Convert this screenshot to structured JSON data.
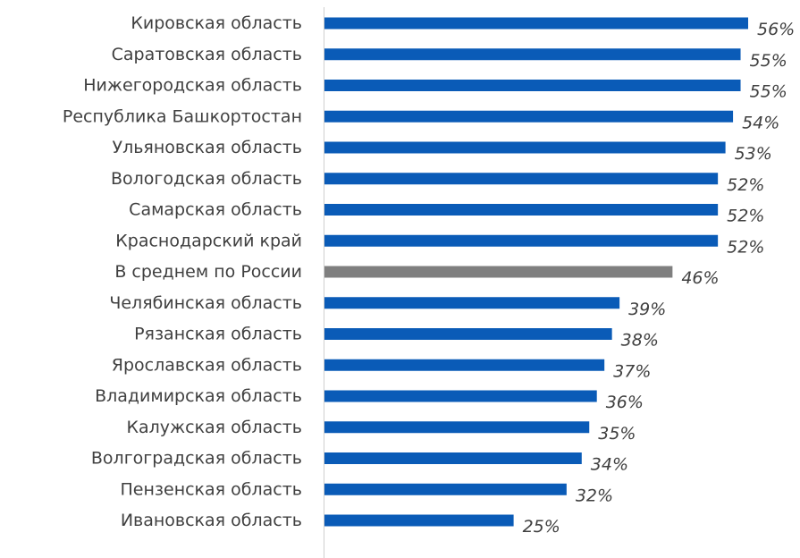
{
  "chart_data": {
    "type": "bar",
    "orientation": "horizontal",
    "title": "",
    "xlabel": "",
    "ylabel": "",
    "xlim": [
      0,
      56
    ],
    "grid": false,
    "legend": "none",
    "value_suffix": "%",
    "colors": {
      "default": "#0a5bb7",
      "highlight": "#7f7f7f",
      "axis": "#d0d0d0",
      "text": "#404040"
    },
    "highlight_index": 8,
    "categories": [
      "Кировская область",
      "Саратовская область",
      "Нижегородская область",
      "Республика Башкортостан",
      "Ульяновская область",
      "Вологодская область",
      "Самарская область",
      "Краснодарский край",
      "В среднем по России",
      "Челябинская область",
      "Рязанская область",
      "Ярославская область",
      "Владимирская область",
      "Калужская область",
      "Волгоградская область",
      "Пензенская область",
      "Ивановская область"
    ],
    "values": [
      56,
      55,
      55,
      54,
      53,
      52,
      52,
      52,
      46,
      39,
      38,
      37,
      36,
      35,
      34,
      32,
      25
    ],
    "value_labels": [
      "56%",
      "55%",
      "55%",
      "54%",
      "53%",
      "52%",
      "52%",
      "52%",
      "46%",
      "39%",
      "38%",
      "37%",
      "36%",
      "35%",
      "34%",
      "32%",
      "25%"
    ]
  }
}
